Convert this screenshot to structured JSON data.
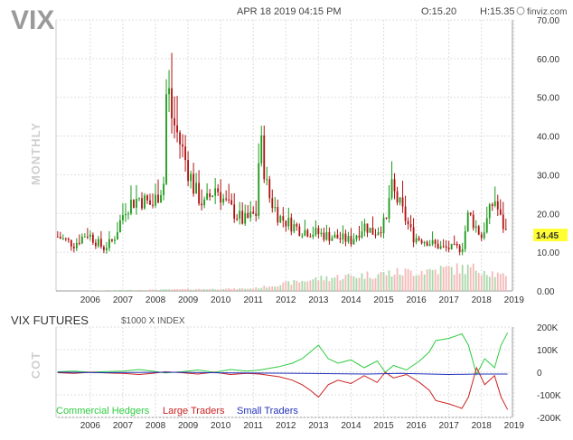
{
  "header": {
    "ticker": "VIX",
    "datetime": "APR 18 2019 04:15 PM",
    "open": "O:15.20",
    "high": "H:15.35",
    "brand": "finviz.com"
  },
  "price_panel": {
    "period_label": "MONTHLY",
    "last_price": "14.45"
  },
  "cot_panel": {
    "title": "VIX FUTURES",
    "unit": "$1000 X INDEX",
    "side_label": "COT"
  },
  "colors": {
    "up": "#1a9a1a",
    "down": "#b01010",
    "vol_up": "#a8d8a8",
    "vol_down": "#f5b8b8",
    "grid": "#dddddd",
    "commercial": "#2ecc40",
    "large": "#cc2222",
    "small": "#2233bb",
    "price_label_bg": "#ffff33"
  },
  "chart_data": [
    {
      "type": "candlestick",
      "title": "VIX",
      "ylabel": "MONTHLY",
      "ylim": [
        0,
        70
      ],
      "y_ticks": [
        "0.00",
        "10.00",
        "20.00",
        "30.00",
        "40.00",
        "50.00",
        "60.00",
        "70.00"
      ],
      "x_ticks": [
        "2006",
        "2007",
        "2008",
        "2009",
        "2010",
        "2011",
        "2012",
        "2013",
        "2014",
        "2015",
        "2016",
        "2017",
        "2018",
        "2019"
      ],
      "x_range": [
        2005.45,
        2019.45
      ],
      "last_value": 14.45,
      "key_points": [
        {
          "x": 2005.5,
          "y": 14
        },
        {
          "x": 2006.0,
          "y": 12
        },
        {
          "x": 2006.4,
          "y": 15
        },
        {
          "x": 2006.9,
          "y": 11
        },
        {
          "x": 2007.2,
          "y": 13
        },
        {
          "x": 2007.6,
          "y": 22
        },
        {
          "x": 2008.0,
          "y": 24
        },
        {
          "x": 2008.4,
          "y": 22
        },
        {
          "x": 2008.75,
          "y": 28
        },
        {
          "x": 2008.85,
          "y": 55
        },
        {
          "x": 2009.0,
          "y": 45
        },
        {
          "x": 2009.3,
          "y": 37
        },
        {
          "x": 2009.7,
          "y": 26
        },
        {
          "x": 2010.0,
          "y": 22
        },
        {
          "x": 2010.35,
          "y": 27
        },
        {
          "x": 2010.7,
          "y": 22
        },
        {
          "x": 2011.2,
          "y": 18
        },
        {
          "x": 2011.6,
          "y": 20
        },
        {
          "x": 2011.7,
          "y": 40
        },
        {
          "x": 2011.95,
          "y": 25
        },
        {
          "x": 2012.3,
          "y": 19
        },
        {
          "x": 2012.9,
          "y": 16
        },
        {
          "x": 2013.4,
          "y": 15
        },
        {
          "x": 2013.9,
          "y": 14
        },
        {
          "x": 2014.5,
          "y": 13
        },
        {
          "x": 2014.9,
          "y": 17
        },
        {
          "x": 2015.2,
          "y": 15
        },
        {
          "x": 2015.6,
          "y": 18
        },
        {
          "x": 2015.7,
          "y": 27
        },
        {
          "x": 2016.0,
          "y": 22
        },
        {
          "x": 2016.4,
          "y": 14
        },
        {
          "x": 2016.8,
          "y": 13
        },
        {
          "x": 2017.3,
          "y": 11
        },
        {
          "x": 2017.9,
          "y": 11
        },
        {
          "x": 2018.1,
          "y": 20
        },
        {
          "x": 2018.5,
          "y": 14
        },
        {
          "x": 2018.9,
          "y": 24
        },
        {
          "x": 2019.1,
          "y": 18
        },
        {
          "x": 2019.3,
          "y": 14.45
        }
      ],
      "volume_profile": [
        {
          "x": 2005.5,
          "v": 0
        },
        {
          "x": 2011.5,
          "v": 1
        },
        {
          "x": 2012.5,
          "v": 3
        },
        {
          "x": 2013.5,
          "v": 5
        },
        {
          "x": 2014.5,
          "v": 6
        },
        {
          "x": 2015.5,
          "v": 7
        },
        {
          "x": 2016.5,
          "v": 8
        },
        {
          "x": 2017.5,
          "v": 9
        },
        {
          "x": 2018.5,
          "v": 9
        },
        {
          "x": 2019.3,
          "v": 5
        }
      ]
    },
    {
      "type": "line",
      "title": "VIX FUTURES",
      "ylabel": "COT",
      "ylim": [
        -200000,
        200000
      ],
      "y_ticks": [
        "200K",
        "100K",
        "0",
        "-100K",
        "-200K"
      ],
      "x_ticks": [
        "2006",
        "2007",
        "2008",
        "2009",
        "2010",
        "2011",
        "2012",
        "2013",
        "2014",
        "2015",
        "2016",
        "2017",
        "2018",
        "2019"
      ],
      "x_range": [
        2005.45,
        2019.45
      ],
      "legend": [
        "Commercial Hedgers",
        "Large Traders",
        "Small Traders"
      ],
      "series": [
        {
          "name": "Commercial Hedgers",
          "points": [
            [
              2005.5,
              2000
            ],
            [
              2006.0,
              5000
            ],
            [
              2006.5,
              0
            ],
            [
              2007.0,
              3000
            ],
            [
              2007.5,
              5000
            ],
            [
              2008.0,
              12000
            ],
            [
              2008.4,
              5000
            ],
            [
              2008.8,
              -3000
            ],
            [
              2009.3,
              2000
            ],
            [
              2009.8,
              10000
            ],
            [
              2010.3,
              0
            ],
            [
              2010.8,
              12000
            ],
            [
              2011.3,
              5000
            ],
            [
              2011.7,
              10000
            ],
            [
              2012.3,
              25000
            ],
            [
              2012.7,
              40000
            ],
            [
              2013.0,
              60000
            ],
            [
              2013.25,
              90000
            ],
            [
              2013.5,
              120000
            ],
            [
              2013.8,
              60000
            ],
            [
              2014.1,
              40000
            ],
            [
              2014.5,
              55000
            ],
            [
              2014.9,
              20000
            ],
            [
              2015.3,
              50000
            ],
            [
              2015.55,
              0
            ],
            [
              2015.8,
              30000
            ],
            [
              2016.2,
              10000
            ],
            [
              2016.6,
              50000
            ],
            [
              2016.9,
              90000
            ],
            [
              2017.1,
              140000
            ],
            [
              2017.5,
              150000
            ],
            [
              2017.9,
              170000
            ],
            [
              2018.1,
              120000
            ],
            [
              2018.35,
              -10000
            ],
            [
              2018.6,
              60000
            ],
            [
              2018.9,
              20000
            ],
            [
              2019.1,
              120000
            ],
            [
              2019.3,
              175000
            ]
          ]
        },
        {
          "name": "Large Traders",
          "points": [
            [
              2005.5,
              -2000
            ],
            [
              2006.0,
              -5000
            ],
            [
              2006.5,
              0
            ],
            [
              2007.0,
              -3000
            ],
            [
              2007.5,
              -5000
            ],
            [
              2008.0,
              -10000
            ],
            [
              2008.4,
              -5000
            ],
            [
              2008.8,
              2000
            ],
            [
              2009.3,
              -2000
            ],
            [
              2009.8,
              -8000
            ],
            [
              2010.3,
              0
            ],
            [
              2010.8,
              -10000
            ],
            [
              2011.3,
              -5000
            ],
            [
              2011.7,
              -8000
            ],
            [
              2012.3,
              -20000
            ],
            [
              2012.7,
              -35000
            ],
            [
              2013.0,
              -55000
            ],
            [
              2013.25,
              -80000
            ],
            [
              2013.5,
              -110000
            ],
            [
              2013.8,
              -55000
            ],
            [
              2014.1,
              -35000
            ],
            [
              2014.5,
              -50000
            ],
            [
              2014.9,
              -15000
            ],
            [
              2015.3,
              -45000
            ],
            [
              2015.55,
              0
            ],
            [
              2015.8,
              -25000
            ],
            [
              2016.2,
              -10000
            ],
            [
              2016.6,
              -45000
            ],
            [
              2016.9,
              -80000
            ],
            [
              2017.1,
              -125000
            ],
            [
              2017.5,
              -140000
            ],
            [
              2017.9,
              -160000
            ],
            [
              2018.1,
              -110000
            ],
            [
              2018.35,
              20000
            ],
            [
              2018.6,
              -55000
            ],
            [
              2018.9,
              -15000
            ],
            [
              2019.1,
              -110000
            ],
            [
              2019.3,
              -165000
            ]
          ]
        },
        {
          "name": "Small Traders",
          "points": [
            [
              2005.5,
              0
            ],
            [
              2007.0,
              -2000
            ],
            [
              2009.0,
              0
            ],
            [
              2011.0,
              -3000
            ],
            [
              2013.0,
              -5000
            ],
            [
              2015.0,
              -8000
            ],
            [
              2016.0,
              -5000
            ],
            [
              2017.5,
              -10000
            ],
            [
              2018.4,
              -8000
            ],
            [
              2019.3,
              -8000
            ]
          ]
        }
      ]
    }
  ]
}
